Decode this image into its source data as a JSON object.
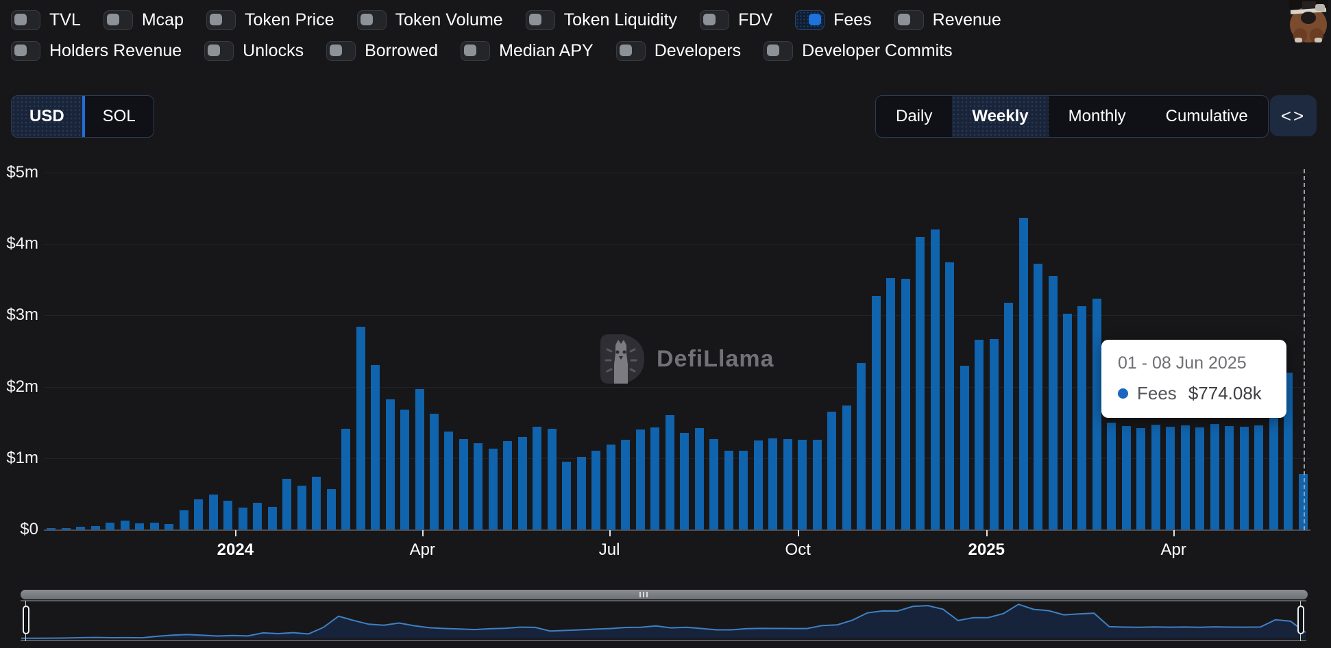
{
  "header": {
    "rows": [
      {
        "items": [
          {
            "label": "TVL",
            "on": false
          },
          {
            "label": "Mcap",
            "on": false
          },
          {
            "label": "Token Price",
            "on": false
          },
          {
            "label": "Token Volume",
            "on": false
          },
          {
            "label": "Token Liquidity",
            "on": false
          },
          {
            "label": "FDV",
            "on": false
          },
          {
            "label": "Fees",
            "on": true
          },
          {
            "label": "Revenue",
            "on": false
          }
        ]
      },
      {
        "items": [
          {
            "label": "Holders Revenue",
            "on": false
          },
          {
            "label": "Unlocks",
            "on": false
          },
          {
            "label": "Borrowed",
            "on": false
          },
          {
            "label": "Median APY",
            "on": false
          },
          {
            "label": "Developers",
            "on": false
          },
          {
            "label": "Developer Commits",
            "on": false
          }
        ]
      }
    ]
  },
  "controls": {
    "currency_toggle": {
      "options": [
        "USD",
        "SOL"
      ],
      "selected": "USD"
    },
    "view_tabs": {
      "options": [
        "Daily",
        "Weekly",
        "Monthly",
        "Cumulative"
      ],
      "selected": "Weekly"
    },
    "embed_button_icon": "<>"
  },
  "watermark": {
    "text": "DefiLlama"
  },
  "tooltip": {
    "date_range": "01 - 08 Jun 2025",
    "series": "Fees",
    "value": "$774.08k",
    "dot_color": "#1b67c0"
  },
  "chart_data": {
    "type": "bar",
    "title": "Weekly Fees (USD)",
    "period_selected": "Weekly",
    "currency_selected": "USD",
    "ylim_million_usd": [
      0,
      5
    ],
    "y_tick_labels": [
      "$0",
      "$1m",
      "$2m",
      "$3m",
      "$4m",
      "$5m"
    ],
    "x_ticks": [
      {
        "label": "2024",
        "pos": 12.5,
        "bold": true
      },
      {
        "label": "Apr",
        "pos": 25.2,
        "bold": false
      },
      {
        "label": "Jul",
        "pos": 37.9,
        "bold": false
      },
      {
        "label": "Oct",
        "pos": 50.7,
        "bold": false
      },
      {
        "label": "2025",
        "pos": 63.5,
        "bold": true
      },
      {
        "label": "Apr",
        "pos": 76.2,
        "bold": false
      }
    ],
    "bar_color": "#1063ad",
    "grid": true,
    "legend_position": "tooltip-only",
    "series": [
      {
        "name": "Fees",
        "unit": "million USD per week",
        "values": [
          0.016,
          0.022,
          0.034,
          0.05,
          0.1,
          0.12,
          0.09,
          0.1,
          0.08,
          0.27,
          0.42,
          0.49,
          0.4,
          0.31,
          0.37,
          0.32,
          0.71,
          0.61,
          0.74,
          0.57,
          1.41,
          2.84,
          2.3,
          1.82,
          1.68,
          1.97,
          1.62,
          1.37,
          1.27,
          1.21,
          1.13,
          1.24,
          1.3,
          1.44,
          1.41,
          0.95,
          1.02,
          1.1,
          1.19,
          1.26,
          1.4,
          1.43,
          1.6,
          1.35,
          1.42,
          1.27,
          1.1,
          1.1,
          1.25,
          1.28,
          1.27,
          1.26,
          1.26,
          1.65,
          1.74,
          2.33,
          3.27,
          3.52,
          3.51,
          4.1,
          4.2,
          3.74,
          2.29,
          2.66,
          2.67,
          3.18,
          4.37,
          3.72,
          3.55,
          3.02,
          3.13,
          3.23,
          1.5,
          1.45,
          1.42,
          1.47,
          1.44,
          1.46,
          1.43,
          1.48,
          1.45,
          1.44,
          1.46,
          2.39,
          2.2,
          0.774
        ]
      }
    ],
    "highlighted_bar": {
      "index": 85,
      "label": "01 - 08 Jun 2025",
      "value": "$774.08k"
    },
    "navigator": {
      "type": "area",
      "uses_same_series": true,
      "line_color": "#4080c2",
      "fill_color": "#16233b"
    }
  }
}
